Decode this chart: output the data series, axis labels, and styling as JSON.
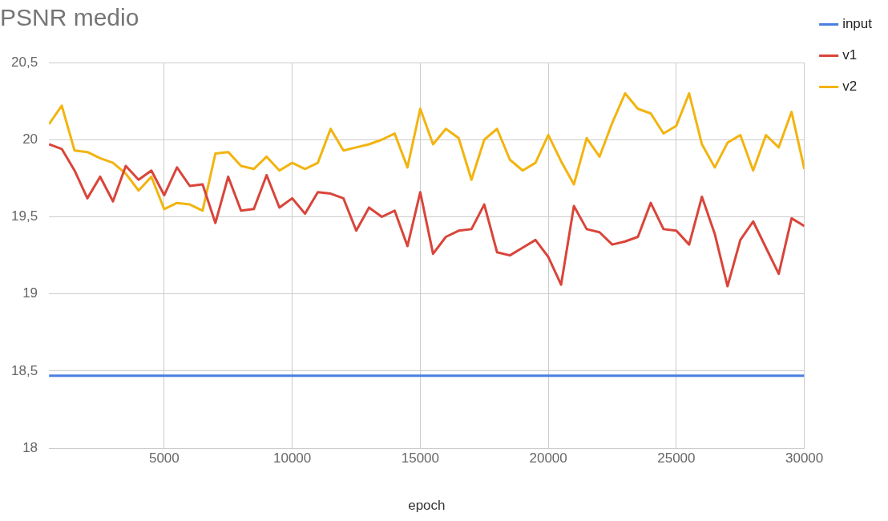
{
  "chart_data": {
    "type": "line",
    "title": "PSNR medio",
    "xlabel": "epoch",
    "x": [
      500,
      1000,
      1500,
      2000,
      2500,
      3000,
      3500,
      4000,
      4500,
      5000,
      5500,
      6000,
      6500,
      7000,
      7500,
      8000,
      8500,
      9000,
      9500,
      10000,
      10500,
      11000,
      11500,
      12000,
      12500,
      13000,
      13500,
      14000,
      14500,
      15000,
      15500,
      16000,
      16500,
      17000,
      17500,
      18000,
      18500,
      19000,
      19500,
      20000,
      20500,
      21000,
      21500,
      22000,
      22500,
      23000,
      23500,
      24000,
      24500,
      25000,
      25500,
      26000,
      26500,
      27000,
      27500,
      28000,
      28500,
      29000,
      29500,
      30000
    ],
    "series": [
      {
        "name": "input",
        "color": "#4a7fe0",
        "values": [
          18.47,
          18.47,
          18.47,
          18.47,
          18.47,
          18.47,
          18.47,
          18.47,
          18.47,
          18.47,
          18.47,
          18.47,
          18.47,
          18.47,
          18.47,
          18.47,
          18.47,
          18.47,
          18.47,
          18.47,
          18.47,
          18.47,
          18.47,
          18.47,
          18.47,
          18.47,
          18.47,
          18.47,
          18.47,
          18.47,
          18.47,
          18.47,
          18.47,
          18.47,
          18.47,
          18.47,
          18.47,
          18.47,
          18.47,
          18.47,
          18.47,
          18.47,
          18.47,
          18.47,
          18.47,
          18.47,
          18.47,
          18.47,
          18.47,
          18.47,
          18.47,
          18.47,
          18.47,
          18.47,
          18.47,
          18.47,
          18.47,
          18.47,
          18.47,
          18.47
        ]
      },
      {
        "name": "v1",
        "color": "#d9453a",
        "values": [
          19.97,
          19.94,
          19.8,
          19.62,
          19.76,
          19.6,
          19.83,
          19.74,
          19.8,
          19.64,
          19.82,
          19.7,
          19.71,
          19.46,
          19.76,
          19.54,
          19.55,
          19.77,
          19.56,
          19.62,
          19.52,
          19.66,
          19.65,
          19.62,
          19.41,
          19.56,
          19.5,
          19.54,
          19.31,
          19.66,
          19.26,
          19.37,
          19.41,
          19.42,
          19.58,
          19.27,
          19.25,
          19.3,
          19.35,
          19.24,
          19.06,
          19.57,
          19.42,
          19.4,
          19.32,
          19.34,
          19.37,
          19.59,
          19.42,
          19.41,
          19.32,
          19.63,
          19.39,
          19.05,
          19.35,
          19.47,
          19.3,
          19.13,
          19.49,
          19.44
        ]
      },
      {
        "name": "v2",
        "color": "#f2b410",
        "values": [
          20.1,
          20.22,
          19.93,
          19.92,
          19.88,
          19.85,
          19.78,
          19.67,
          19.76,
          19.55,
          19.59,
          19.58,
          19.54,
          19.91,
          19.92,
          19.83,
          19.81,
          19.89,
          19.8,
          19.85,
          19.81,
          19.85,
          20.07,
          19.93,
          19.95,
          19.97,
          20.0,
          20.04,
          19.82,
          20.2,
          19.97,
          20.07,
          20.01,
          19.74,
          20.0,
          20.07,
          19.87,
          19.8,
          19.85,
          20.03,
          19.86,
          19.71,
          20.01,
          19.89,
          20.11,
          20.3,
          20.2,
          20.17,
          20.04,
          20.09,
          20.3,
          19.97,
          19.82,
          19.98,
          20.03,
          19.8,
          20.03,
          19.95,
          20.18,
          19.81
        ]
      }
    ],
    "xlim": [
      500,
      30000
    ],
    "xticks": [
      5000,
      10000,
      15000,
      20000,
      25000,
      30000
    ],
    "ylim": [
      18,
      20.5
    ],
    "yticks": [
      18,
      {
        "value": 18.5,
        "label": "18,5"
      },
      19,
      {
        "value": 19.5,
        "label": "19,5"
      },
      20,
      {
        "value": 20.5,
        "label": "20,5"
      }
    ],
    "grid": true,
    "legend": "top right",
    "marker": "none",
    "line_style": "solid"
  }
}
